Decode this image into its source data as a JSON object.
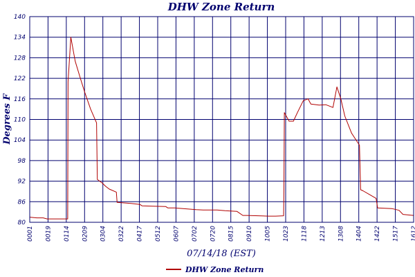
{
  "chart_data": {
    "type": "line",
    "title": "DHW Zone Return",
    "xlabel": "07/14/18 (EST)",
    "ylabel": "Degrees F",
    "ylim": [
      80,
      140
    ],
    "yticks": [
      80,
      86,
      92,
      98,
      104,
      110,
      116,
      122,
      128,
      134,
      140
    ],
    "xlim": [
      "00:01",
      "16:12"
    ],
    "xticks": [
      "00:01",
      "00:19",
      "01:14",
      "02:09",
      "03:04",
      "03:22",
      "04:17",
      "05:12",
      "06:07",
      "07:02",
      "07:20",
      "08:15",
      "09:10",
      "10:05",
      "10:23",
      "11:18",
      "12:13",
      "13:08",
      "14:04",
      "14:22",
      "15:17",
      "16:12"
    ],
    "grid": true,
    "legend_position": "bottom-center",
    "colors": {
      "series": "#b00000",
      "axis": "#00006e",
      "background": "#ffffff"
    },
    "series": [
      {
        "name": "DHW Zone Return",
        "points": [
          {
            "x": "00:01",
            "y": 81.5
          },
          {
            "x": "00:19",
            "y": 81.3
          },
          {
            "x": "00:35",
            "y": 81.3
          },
          {
            "x": "00:45",
            "y": 81.0
          },
          {
            "x": "01:14",
            "y": 81.0
          },
          {
            "x": "01:37",
            "y": 81.0
          },
          {
            "x": "01:38",
            "y": 121.0
          },
          {
            "x": "01:45",
            "y": 134.0
          },
          {
            "x": "01:56",
            "y": 127.0
          },
          {
            "x": "02:09",
            "y": 122.0
          },
          {
            "x": "02:20",
            "y": 118.0
          },
          {
            "x": "02:35",
            "y": 113.0
          },
          {
            "x": "02:50",
            "y": 109.0
          },
          {
            "x": "02:52",
            "y": 92.5
          },
          {
            "x": "03:04",
            "y": 91.5
          },
          {
            "x": "03:13",
            "y": 90.5
          },
          {
            "x": "03:22",
            "y": 89.7
          },
          {
            "x": "03:40",
            "y": 88.8
          },
          {
            "x": "03:42",
            "y": 85.8
          },
          {
            "x": "04:17",
            "y": 85.5
          },
          {
            "x": "04:40",
            "y": 85.2
          },
          {
            "x": "04:45",
            "y": 84.8
          },
          {
            "x": "05:12",
            "y": 84.7
          },
          {
            "x": "05:45",
            "y": 84.6
          },
          {
            "x": "05:50",
            "y": 84.2
          },
          {
            "x": "06:07",
            "y": 84.2
          },
          {
            "x": "06:40",
            "y": 83.9
          },
          {
            "x": "07:02",
            "y": 83.7
          },
          {
            "x": "07:20",
            "y": 83.6
          },
          {
            "x": "07:55",
            "y": 83.6
          },
          {
            "x": "08:15",
            "y": 83.4
          },
          {
            "x": "08:45",
            "y": 83.2
          },
          {
            "x": "09:00",
            "y": 82.0
          },
          {
            "x": "09:10",
            "y": 82.0
          },
          {
            "x": "10:05",
            "y": 81.8
          },
          {
            "x": "10:23",
            "y": 81.8
          },
          {
            "x": "10:43",
            "y": 81.9
          },
          {
            "x": "10:44",
            "y": 89.5
          },
          {
            "x": "10:45",
            "y": 112.0
          },
          {
            "x": "10:57",
            "y": 109.5
          },
          {
            "x": "11:08",
            "y": 109.5
          },
          {
            "x": "11:18",
            "y": 112.0
          },
          {
            "x": "11:33",
            "y": 115.5
          },
          {
            "x": "11:45",
            "y": 116.0
          },
          {
            "x": "11:52",
            "y": 114.5
          },
          {
            "x": "12:13",
            "y": 114.2
          },
          {
            "x": "12:30",
            "y": 114.3
          },
          {
            "x": "12:48",
            "y": 113.5
          },
          {
            "x": "12:58",
            "y": 119.5
          },
          {
            "x": "13:08",
            "y": 116.0
          },
          {
            "x": "13:18",
            "y": 111.0
          },
          {
            "x": "13:35",
            "y": 106.0
          },
          {
            "x": "13:55",
            "y": 102.5
          },
          {
            "x": "13:58",
            "y": 89.5
          },
          {
            "x": "14:04",
            "y": 89.2
          },
          {
            "x": "14:22",
            "y": 88.0
          },
          {
            "x": "14:37",
            "y": 87.0
          },
          {
            "x": "14:41",
            "y": 84.2
          },
          {
            "x": "15:17",
            "y": 84.0
          },
          {
            "x": "15:35",
            "y": 83.5
          },
          {
            "x": "15:45",
            "y": 82.3
          },
          {
            "x": "16:12",
            "y": 82.0
          }
        ]
      }
    ]
  }
}
